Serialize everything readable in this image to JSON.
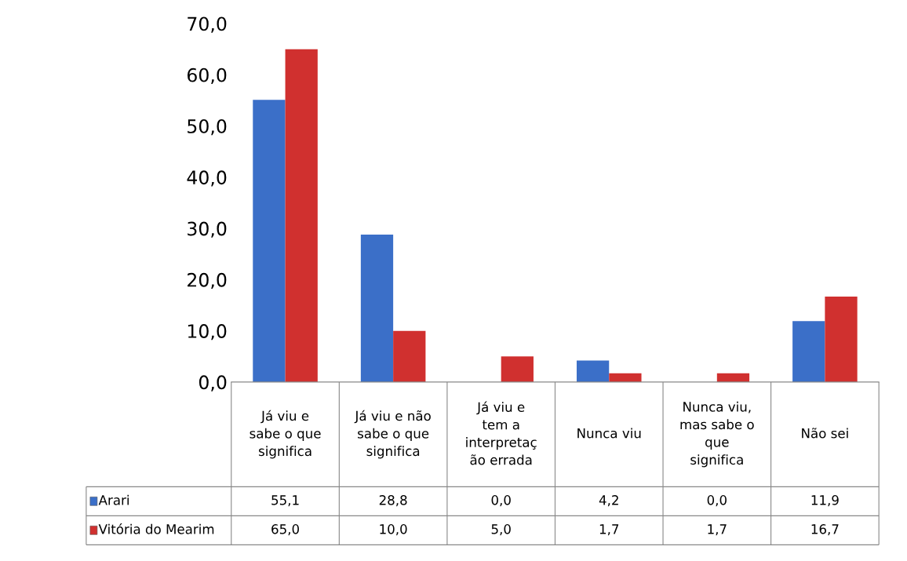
{
  "chart_data": {
    "type": "bar",
    "categories": [
      "Já viu e\nsabe o que\nsignifica",
      "Já viu e não\nsabe o que\nsignifica",
      "Já viu e\ntem a\ninterpretaç\não errada",
      "Nunca viu",
      "Nunca viu,\nmas sabe o\nque\nsignifica",
      "Não sei"
    ],
    "series": [
      {
        "name": "Arari",
        "color": "#3b6fc8",
        "values": [
          55.1,
          28.8,
          0.0,
          4.2,
          0.0,
          11.9
        ],
        "value_labels": [
          "55,1",
          "28,8",
          "0,0",
          "4,2",
          "0,0",
          "11,9"
        ]
      },
      {
        "name": "Vitória do Mearim",
        "color": "#d0302f",
        "values": [
          65.0,
          10.0,
          5.0,
          1.7,
          1.7,
          16.7
        ],
        "value_labels": [
          "65,0",
          "10,0",
          "5,0",
          "1,7",
          "1,7",
          "16,7"
        ]
      }
    ],
    "ylim": [
      0,
      70
    ],
    "yticks": [
      {
        "value": 0,
        "label": "0,0"
      },
      {
        "value": 10,
        "label": "10,0"
      },
      {
        "value": 20,
        "label": "20,0"
      },
      {
        "value": 30,
        "label": "30,0"
      },
      {
        "value": 40,
        "label": "40,0"
      },
      {
        "value": 50,
        "label": "50,0"
      },
      {
        "value": 60,
        "label": "60,0"
      },
      {
        "value": 70,
        "label": "70,0"
      }
    ],
    "grid": false,
    "legend": "bottom"
  }
}
